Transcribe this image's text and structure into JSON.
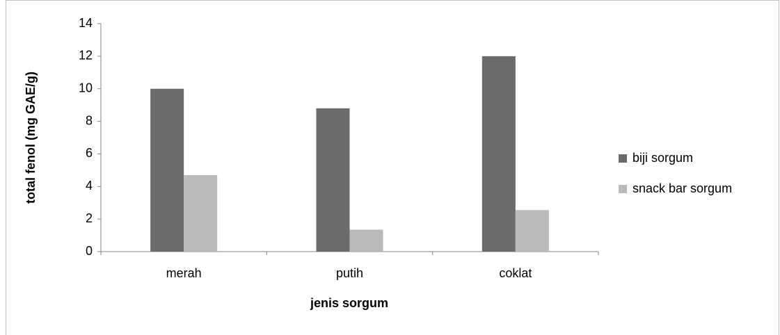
{
  "chart_data": {
    "type": "bar",
    "categories": [
      "merah",
      "putih",
      "coklat"
    ],
    "series": [
      {
        "name": "biji sorgum",
        "color": "#6b6b6b",
        "values": [
          10.0,
          8.8,
          12.0
        ]
      },
      {
        "name": "snack bar sorgum",
        "color": "#bababa",
        "values": [
          4.7,
          1.35,
          2.55
        ]
      }
    ],
    "xlabel": "jenis sorgum",
    "ylabel": "total fenol (mg GAE/g)",
    "ylim": [
      0,
      14
    ],
    "yticks": [
      0,
      2,
      4,
      6,
      8,
      10,
      12,
      14
    ],
    "grid": false,
    "legend": "right"
  }
}
